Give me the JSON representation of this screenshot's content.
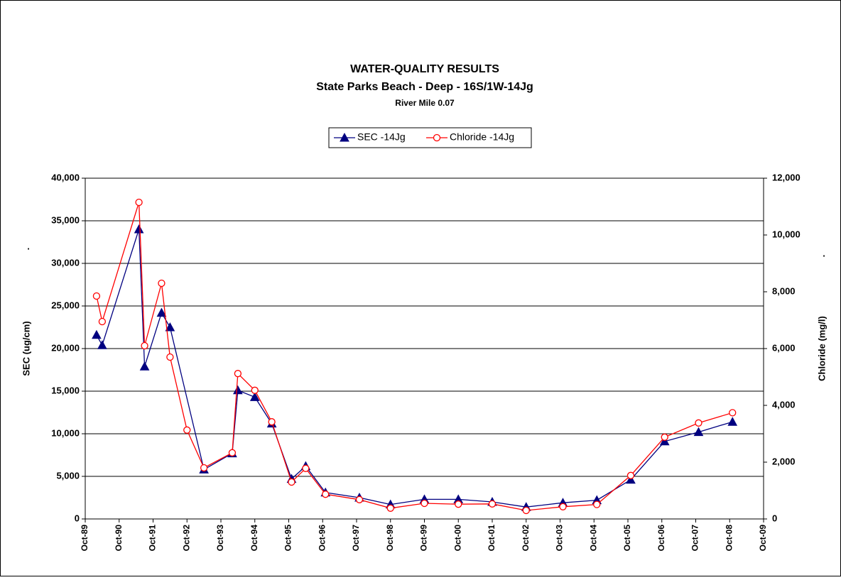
{
  "chart_data": {
    "type": "line",
    "title": "WATER-QUALITY RESULTS",
    "subtitle": "State Parks Beach - Deep - 16S/1W-14Jg",
    "caption": "River Mile 0.07",
    "ylabel": "SEC (ug/cm)",
    "y2label": "Chloride (mg/l)",
    "ylabel_note": ".",
    "y2label_note": ".",
    "xlim": [
      "1989-10",
      "2009-10"
    ],
    "xticks": [
      {
        "value": "1989-10",
        "label": "Oct-89"
      },
      {
        "value": "1990-10",
        "label": "Oct-90"
      },
      {
        "value": "1991-10",
        "label": "Oct-91"
      },
      {
        "value": "1992-10",
        "label": "Oct-92"
      },
      {
        "value": "1993-10",
        "label": "Oct-93"
      },
      {
        "value": "1994-10",
        "label": "Oct-94"
      },
      {
        "value": "1995-10",
        "label": "Oct-95"
      },
      {
        "value": "1996-10",
        "label": "Oct-96"
      },
      {
        "value": "1997-10",
        "label": "Oct-97"
      },
      {
        "value": "1998-10",
        "label": "Oct-98"
      },
      {
        "value": "1999-10",
        "label": "Oct-99"
      },
      {
        "value": "2000-10",
        "label": "Oct-00"
      },
      {
        "value": "2001-10",
        "label": "Oct-01"
      },
      {
        "value": "2002-10",
        "label": "Oct-02"
      },
      {
        "value": "2003-10",
        "label": "Oct-03"
      },
      {
        "value": "2004-10",
        "label": "Oct-04"
      },
      {
        "value": "2005-10",
        "label": "Oct-05"
      },
      {
        "value": "2006-10",
        "label": "Oct-06"
      },
      {
        "value": "2007-10",
        "label": "Oct-07"
      },
      {
        "value": "2008-10",
        "label": "Oct-08"
      },
      {
        "value": "2009-10",
        "label": "Oct-09"
      }
    ],
    "ylim": [
      0,
      40000
    ],
    "yticks": [
      0,
      {
        "value": 5000,
        "label": "5,000"
      },
      {
        "value": 10000,
        "label": "10,000"
      },
      {
        "value": 15000,
        "label": "15,000"
      },
      {
        "value": 20000,
        "label": "20,000"
      },
      {
        "value": 25000,
        "label": "25,000"
      },
      {
        "value": 30000,
        "label": "30,000"
      },
      {
        "value": 35000,
        "label": "35,000"
      },
      {
        "value": 40000,
        "label": "40,000"
      }
    ],
    "y2lim": [
      0,
      12000
    ],
    "y2ticks": [
      0,
      {
        "value": 2000,
        "label": "2,000"
      },
      {
        "value": 4000,
        "label": "4,000"
      },
      {
        "value": 6000,
        "label": "6,000"
      },
      {
        "value": 8000,
        "label": "8,000"
      },
      {
        "value": 10000,
        "label": "10,000"
      },
      {
        "value": 12000,
        "label": "12,000"
      }
    ],
    "grid": true,
    "series": [
      {
        "name": "SEC -14Jg",
        "color": "#000080",
        "marker": "triangle",
        "x": [
          "1990-02",
          "1990-04",
          "1991-05",
          "1991-07",
          "1992-01",
          "1992-04",
          "1993-04",
          "1994-02",
          "1994-04",
          "1994-10",
          "1995-04",
          "1995-11",
          "1996-04",
          "1996-11",
          "1997-11",
          "1998-10",
          "1999-10",
          "2000-10",
          "2001-10",
          "2002-10",
          "2003-11",
          "2004-11",
          "2005-11",
          "2006-11",
          "2007-11",
          "2008-11"
        ],
        "values": [
          21600,
          20400,
          34000,
          17900,
          24200,
          22500,
          5800,
          7700,
          15100,
          14300,
          11200,
          4700,
          6200,
          3100,
          2500,
          1700,
          2300,
          2300,
          2000,
          1400,
          1900,
          2200,
          4600,
          9100,
          10200,
          11400
        ]
      },
      {
        "name": "Chloride -14Jg",
        "color": "#ff0000",
        "marker": "circle",
        "axis": "y2",
        "x": [
          "1990-02",
          "1990-04",
          "1991-05",
          "1991-07",
          "1992-01",
          "1992-04",
          "1992-10",
          "1993-04",
          "1994-02",
          "1994-04",
          "1994-10",
          "1995-04",
          "1995-11",
          "1996-04",
          "1996-11",
          "1997-11",
          "1998-10",
          "1999-10",
          "2000-10",
          "2001-10",
          "2002-10",
          "2003-11",
          "2004-11",
          "2005-11",
          "2006-11",
          "2007-11",
          "2008-11"
        ],
        "values": [
          7850,
          6950,
          11150,
          6100,
          8300,
          5700,
          3130,
          1800,
          2330,
          5120,
          4530,
          3420,
          1300,
          1780,
          870,
          680,
          380,
          550,
          520,
          530,
          300,
          430,
          510,
          1530,
          2880,
          3380,
          3740
        ]
      }
    ]
  }
}
